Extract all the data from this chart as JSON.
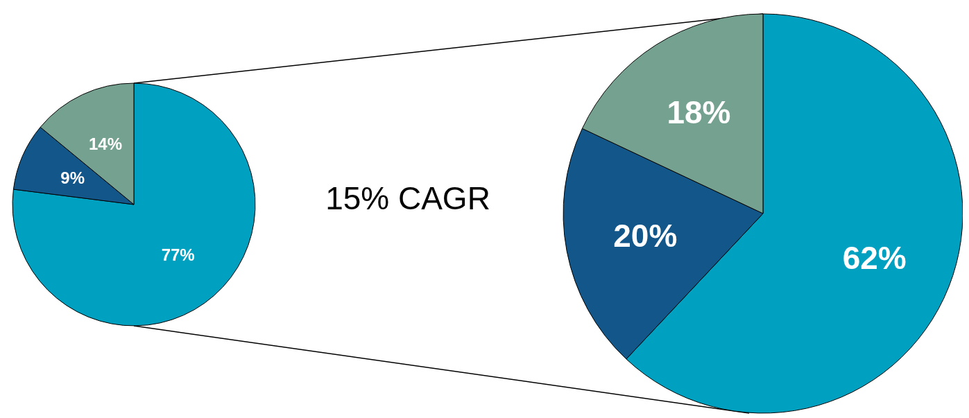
{
  "chart_data": [
    {
      "type": "pie",
      "categories": [
        null,
        null,
        null
      ],
      "values": [
        77,
        9,
        14
      ],
      "colors": [
        "#00a0c0",
        "#12568a",
        "#75a190"
      ],
      "value_labels": [
        "77%",
        "9%",
        "14%"
      ],
      "annotations": [
        "15% CAGR"
      ]
    },
    {
      "type": "pie",
      "categories": [
        null,
        null,
        null
      ],
      "values": [
        62,
        20,
        18
      ],
      "colors": [
        "#00a0c0",
        "#12568a",
        "#75a190"
      ],
      "value_labels": [
        "62%",
        "20%",
        "18%"
      ]
    }
  ]
}
